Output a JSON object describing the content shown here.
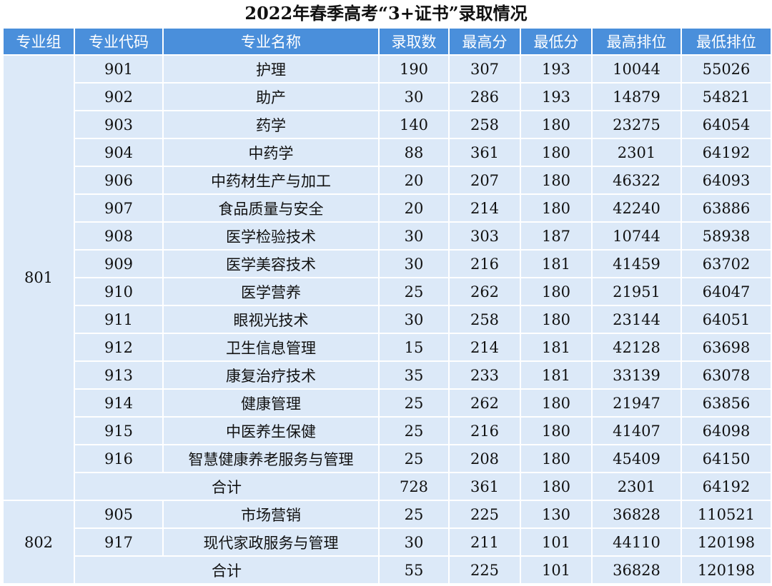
{
  "title": "2022年春季高考“3+证书”录取情况",
  "headers": [
    "专业组",
    "专业代码",
    "专业名称",
    "录取数",
    "最高分",
    "最低分",
    "最高排位",
    "最低排位"
  ],
  "groups": [
    {
      "group": "801",
      "rows": [
        [
          "901",
          "护理",
          "190",
          "307",
          "193",
          "10044",
          "55026"
        ],
        [
          "902",
          "助产",
          "30",
          "286",
          "193",
          "14879",
          "54821"
        ],
        [
          "903",
          "药学",
          "140",
          "258",
          "180",
          "23275",
          "64054"
        ],
        [
          "904",
          "中药学",
          "88",
          "361",
          "180",
          "2301",
          "64192"
        ],
        [
          "906",
          "中药材生产与加工",
          "20",
          "207",
          "180",
          "46322",
          "64093"
        ],
        [
          "907",
          "食品质量与安全",
          "20",
          "214",
          "180",
          "42240",
          "63886"
        ],
        [
          "908",
          "医学检验技术",
          "30",
          "303",
          "187",
          "10744",
          "58938"
        ],
        [
          "909",
          "医学美容技术",
          "30",
          "216",
          "181",
          "41459",
          "63702"
        ],
        [
          "910",
          "医学营养",
          "25",
          "262",
          "180",
          "21951",
          "64047"
        ],
        [
          "911",
          "眼视光技术",
          "30",
          "258",
          "180",
          "23144",
          "64051"
        ],
        [
          "912",
          "卫生信息管理",
          "15",
          "214",
          "181",
          "42128",
          "63698"
        ],
        [
          "913",
          "康复治疗技术",
          "35",
          "233",
          "181",
          "33139",
          "63078"
        ],
        [
          "914",
          "健康管理",
          "25",
          "262",
          "180",
          "21947",
          "63856"
        ],
        [
          "915",
          "中医养生保健",
          "25",
          "216",
          "180",
          "41407",
          "64098"
        ],
        [
          "916",
          "智慧健康养老服务与管理",
          "25",
          "208",
          "180",
          "45409",
          "64150"
        ]
      ],
      "subtotal": [
        "合计",
        "728",
        "361",
        "180",
        "2301",
        "64192"
      ]
    },
    {
      "group": "802",
      "rows": [
        [
          "905",
          "市场营销",
          "25",
          "225",
          "130",
          "36828",
          "110521"
        ],
        [
          "917",
          "现代家政服务与管理",
          "30",
          "211",
          "101",
          "44110",
          "120198"
        ]
      ],
      "subtotal": [
        "合计",
        "55",
        "225",
        "101",
        "36828",
        "120198"
      ]
    }
  ]
}
